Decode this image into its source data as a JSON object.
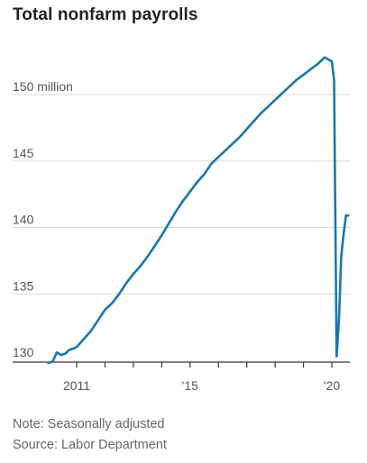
{
  "title": "Total nonfarm payrolls",
  "notes": {
    "seasonal": "Note: Seasonally adjusted",
    "source": "Source: Labor Department"
  },
  "colors": {
    "line": "#1a77a8",
    "grid": "#d9d9d9",
    "axis": "#333333",
    "text": "#555555"
  },
  "chart_data": {
    "type": "line",
    "title": "Total nonfarm payrolls",
    "xlabel": "",
    "ylabel": "",
    "ylim": [
      129,
      155
    ],
    "xlim": [
      2010,
      2020.9
    ],
    "grid": "horizontal",
    "y_ticks": [
      {
        "value": 130,
        "label": "130"
      },
      {
        "value": 135,
        "label": "135"
      },
      {
        "value": 140,
        "label": "140"
      },
      {
        "value": 145,
        "label": "145"
      },
      {
        "value": 150,
        "label": "150 million"
      }
    ],
    "x_ticks": [
      {
        "value": 2011,
        "label": "2011"
      },
      {
        "value": 2012,
        "label": ""
      },
      {
        "value": 2013,
        "label": ""
      },
      {
        "value": 2014,
        "label": ""
      },
      {
        "value": 2015,
        "label": "'15"
      },
      {
        "value": 2016,
        "label": ""
      },
      {
        "value": 2017,
        "label": ""
      },
      {
        "value": 2018,
        "label": ""
      },
      {
        "value": 2019,
        "label": ""
      },
      {
        "value": 2020,
        "label": "'20"
      }
    ],
    "series": [
      {
        "x": [
          2010.0,
          2010.15,
          2010.3,
          2010.45,
          2010.6,
          2010.75,
          2010.9,
          2011.0,
          2011.25,
          2011.5,
          2011.75,
          2012.0,
          2012.25,
          2012.5,
          2012.75,
          2013.0,
          2013.25,
          2013.5,
          2013.75,
          2014.0,
          2014.25,
          2014.5,
          2014.75,
          2015.0,
          2015.25,
          2015.5,
          2015.75,
          2016.0,
          2016.25,
          2016.5,
          2016.75,
          2017.0,
          2017.25,
          2017.5,
          2017.75,
          2018.0,
          2018.25,
          2018.5,
          2018.75,
          2019.0,
          2019.25,
          2019.5,
          2019.75,
          2020.0,
          2020.08,
          2020.17,
          2020.25,
          2020.33,
          2020.42,
          2020.5,
          2020.58
        ],
        "values": [
          129.8,
          129.9,
          130.6,
          130.4,
          130.5,
          130.8,
          130.9,
          131.0,
          131.6,
          132.2,
          133.0,
          133.8,
          134.3,
          135.0,
          135.8,
          136.5,
          137.1,
          137.8,
          138.6,
          139.4,
          140.3,
          141.2,
          142.0,
          142.7,
          143.4,
          144.0,
          144.8,
          145.3,
          145.8,
          146.3,
          146.8,
          147.4,
          148.0,
          148.6,
          149.1,
          149.6,
          150.1,
          150.6,
          151.1,
          151.5,
          151.9,
          152.3,
          152.8,
          152.5,
          151.1,
          130.3,
          133.0,
          137.8,
          139.6,
          140.9,
          140.9
        ]
      }
    ]
  }
}
